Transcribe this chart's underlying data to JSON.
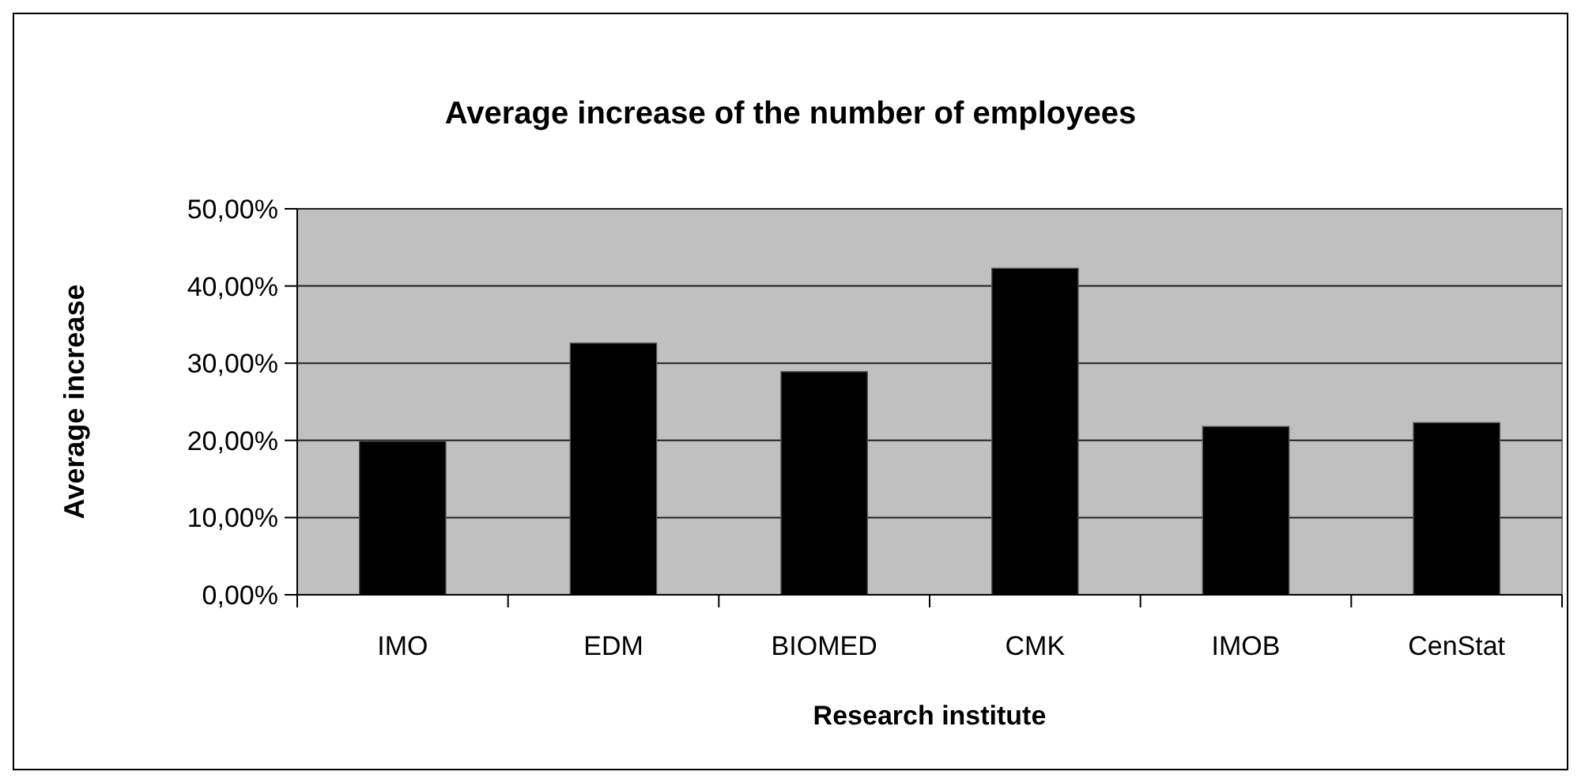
{
  "chart_data": {
    "type": "bar",
    "title": "Average increase of the number of employees",
    "xlabel": "Research institute",
    "ylabel": "Average increase",
    "categories": [
      "IMO",
      "EDM",
      "BIOMED",
      "CMK",
      "IMOB",
      "CenStat"
    ],
    "values": [
      19.9,
      32.6,
      28.9,
      42.3,
      21.8,
      22.3
    ],
    "color": "#000000",
    "ylim": [
      0,
      50
    ],
    "yticks": [
      {
        "value": 0,
        "label": "0,00%"
      },
      {
        "value": 10,
        "label": "10,00%"
      },
      {
        "value": 20,
        "label": "20,00%"
      },
      {
        "value": 30,
        "label": "30,00%"
      },
      {
        "value": 40,
        "label": "40,00%"
      },
      {
        "value": 50,
        "label": "50,00%"
      }
    ],
    "grid": "y"
  }
}
